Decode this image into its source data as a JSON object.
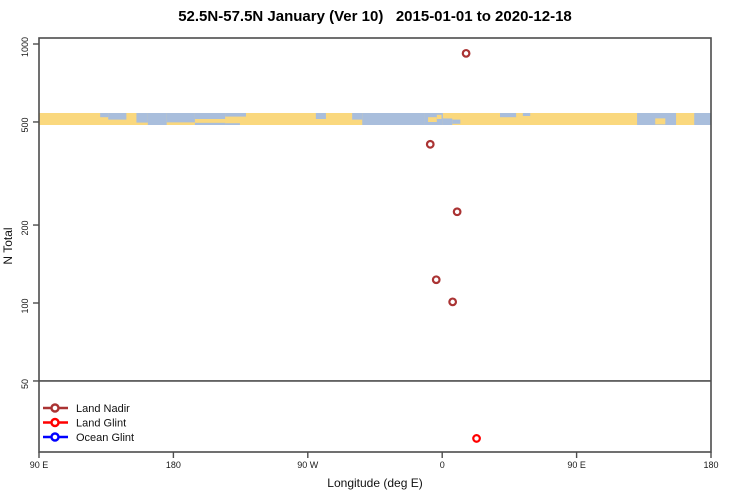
{
  "title": "52.5N-57.5N January (Ver 10)   2015-01-01 to 2020-12-18",
  "colors": {
    "frame": "#4d4d4d",
    "tick_text": "#1a1a1a",
    "land": "#FAD87E",
    "ocean": "#A9BEDC",
    "land_nadir": "#AA3333",
    "land_glint": "#FF0000",
    "ocean_glint": "#0000FF"
  },
  "legend": {
    "items": [
      {
        "label": "Land Nadir",
        "color": "#AA3333"
      },
      {
        "label": "Land Glint",
        "color": "#FF0000"
      },
      {
        "label": "Ocean Glint",
        "color": "#0000FF"
      }
    ]
  },
  "chart_data": {
    "type": "scatter",
    "title": "52.5N-57.5N January (Ver 10)   2015-01-01 to 2020-12-18",
    "xlabel": "Longitude (deg E)",
    "ylabel": "N Total",
    "y_scale": "log",
    "y_ticks": [
      "1000",
      "500",
      "200",
      "100",
      "50"
    ],
    "y_tick_values": [
      1000,
      500,
      200,
      100,
      50
    ],
    "ylim_approx": [
      26,
      1065
    ],
    "x_ticks": [
      {
        "deg_continuous": 90,
        "label": "90 E"
      },
      {
        "deg_continuous": 180,
        "label": "180"
      },
      {
        "deg_continuous": 270,
        "label": "90 W"
      },
      {
        "deg_continuous": 360,
        "label": "0"
      },
      {
        "deg_continuous": 450,
        "label": "90 E"
      },
      {
        "deg_continuous": 540,
        "label": "180"
      }
    ],
    "x_range_deg_continuous": [
      90,
      540
    ],
    "reference_line_y_value": 50,
    "grid": "off",
    "legend_position": "bottom-left",
    "series": [
      {
        "name": "Land Nadir",
        "color": "#AA3333",
        "points": [
          {
            "lon_deg_e": 16,
            "n": 920
          },
          {
            "lon_deg_e": -8,
            "n": 410
          },
          {
            "lon_deg_e": 10,
            "n": 225
          },
          {
            "lon_deg_e": -4,
            "n": 123
          },
          {
            "lon_deg_e": 7,
            "n": 101
          }
        ]
      },
      {
        "name": "Land Glint",
        "color": "#FF0000",
        "points": [
          {
            "lon_deg_e": 23,
            "n": 30
          }
        ]
      },
      {
        "name": "Ocean Glint",
        "color": "#0000FF",
        "points": []
      }
    ],
    "map_band": {
      "description": "land/ocean strip for latitude zone 52.5N-57.5N drawn at y ~ 500",
      "center_value_approx": 510,
      "land_color": "#FAD87E",
      "ocean_color": "#A9BEDC",
      "ocean_rects": [
        [
          0.091,
          0.103,
          0.0,
          0.35
        ],
        [
          0.103,
          0.13,
          0.0,
          0.55
        ],
        [
          0.145,
          0.162,
          0.0,
          0.8
        ],
        [
          0.162,
          0.19,
          0.0,
          1.0
        ],
        [
          0.19,
          0.232,
          0.0,
          0.78
        ],
        [
          0.232,
          0.277,
          0.0,
          0.5
        ],
        [
          0.232,
          0.277,
          0.82,
          1.0
        ],
        [
          0.277,
          0.308,
          0.0,
          0.3
        ],
        [
          0.277,
          0.299,
          0.85,
          1.0
        ],
        [
          0.412,
          0.427,
          0.0,
          0.5
        ],
        [
          0.466,
          0.481,
          0.0,
          0.55
        ],
        [
          0.481,
          0.573,
          0.0,
          1.0
        ],
        [
          0.573,
          0.601,
          0.0,
          1.0
        ],
        [
          0.601,
          0.615,
          0.45,
          1.0
        ],
        [
          0.615,
          0.627,
          0.55,
          0.9
        ],
        [
          0.686,
          0.71,
          0.0,
          0.35
        ],
        [
          0.72,
          0.731,
          0.0,
          0.25
        ],
        [
          0.89,
          0.948,
          0.0,
          1.0
        ],
        [
          0.975,
          1.0,
          0.0,
          1.0
        ]
      ],
      "land_rects": [
        [
          0.579,
          0.592,
          0.35,
          0.75
        ],
        [
          0.592,
          0.599,
          0.15,
          0.5
        ],
        [
          0.603,
          0.616,
          0.0,
          0.45
        ],
        [
          0.917,
          0.932,
          0.45,
          0.95
        ]
      ]
    }
  }
}
